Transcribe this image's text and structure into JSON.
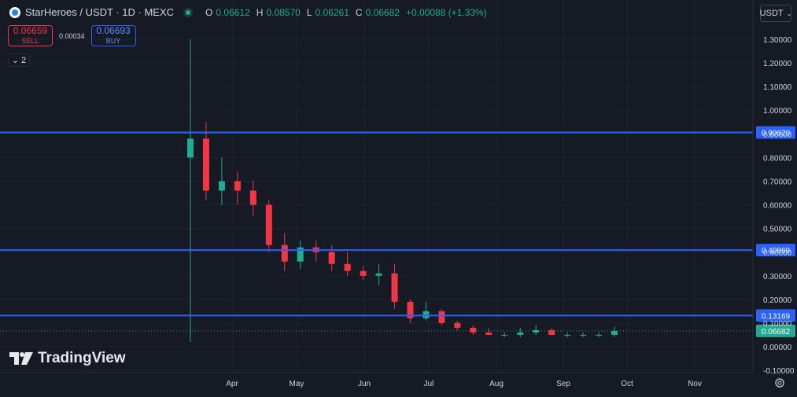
{
  "header": {
    "symbol": "StarHeroes / USDT · 1D · MEXC",
    "ohlc": [
      {
        "k": "O",
        "v": "0.06612"
      },
      {
        "k": "H",
        "v": "0.08570"
      },
      {
        "k": "L",
        "v": "0.06261"
      },
      {
        "k": "C",
        "v": "0.06682"
      },
      {
        "k": "",
        "v": "+0.00088 (+1.33%)"
      }
    ]
  },
  "trade": {
    "sell_price": "0.06659",
    "sell_label": "SELL",
    "spread": "0.00034",
    "buy_price": "0.06693",
    "buy_label": "BUY"
  },
  "indicators_toggle": {
    "count": "2"
  },
  "currency": "USDT",
  "branding": "TradingView",
  "colors": {
    "background": "#161a25",
    "up": "#22ab94",
    "down": "#f23645",
    "level_line": "#2962ff",
    "grid": "#1f2330",
    "text": "#d1d4dc"
  },
  "chart_data": {
    "type": "candlestick",
    "x_labels": [
      "Apr",
      "May",
      "Jun",
      "Jul",
      "Aug",
      "Sep",
      "Oct",
      "Nov"
    ],
    "y_ticks": [
      "1.30000",
      "1.20000",
      "1.10000",
      "1.00000",
      "0.90000",
      "0.80000",
      "0.70000",
      "0.60000",
      "0.50000",
      "0.40000",
      "0.30000",
      "0.20000",
      "0.10000",
      "0.00000",
      "-0.10000"
    ],
    "ylim": [
      -0.1,
      1.3
    ],
    "horizontal_levels": [
      {
        "value": 0.9062,
        "label": "0.90620"
      },
      {
        "value": 0.40869,
        "label": "0.40869"
      },
      {
        "value": 0.13169,
        "label": "0.13169"
      }
    ],
    "last_price": {
      "value": 0.06682,
      "label": "0.06682"
    },
    "candles_weekly_approx": [
      {
        "o": 0.8,
        "h": 1.3,
        "l": 0.02,
        "c": 0.88
      },
      {
        "o": 0.88,
        "h": 0.95,
        "l": 0.62,
        "c": 0.66
      },
      {
        "o": 0.66,
        "h": 0.8,
        "l": 0.6,
        "c": 0.7
      },
      {
        "o": 0.7,
        "h": 0.74,
        "l": 0.6,
        "c": 0.66
      },
      {
        "o": 0.66,
        "h": 0.7,
        "l": 0.55,
        "c": 0.6
      },
      {
        "o": 0.6,
        "h": 0.62,
        "l": 0.4,
        "c": 0.43
      },
      {
        "o": 0.43,
        "h": 0.48,
        "l": 0.32,
        "c": 0.36
      },
      {
        "o": 0.36,
        "h": 0.45,
        "l": 0.33,
        "c": 0.42
      },
      {
        "o": 0.42,
        "h": 0.45,
        "l": 0.36,
        "c": 0.4
      },
      {
        "o": 0.4,
        "h": 0.43,
        "l": 0.32,
        "c": 0.35
      },
      {
        "o": 0.35,
        "h": 0.4,
        "l": 0.3,
        "c": 0.32
      },
      {
        "o": 0.32,
        "h": 0.34,
        "l": 0.28,
        "c": 0.3
      },
      {
        "o": 0.3,
        "h": 0.35,
        "l": 0.26,
        "c": 0.31
      },
      {
        "o": 0.31,
        "h": 0.35,
        "l": 0.16,
        "c": 0.19
      },
      {
        "o": 0.19,
        "h": 0.2,
        "l": 0.1,
        "c": 0.12
      },
      {
        "o": 0.12,
        "h": 0.19,
        "l": 0.11,
        "c": 0.15
      },
      {
        "o": 0.15,
        "h": 0.16,
        "l": 0.09,
        "c": 0.1
      },
      {
        "o": 0.1,
        "h": 0.11,
        "l": 0.07,
        "c": 0.08
      },
      {
        "o": 0.08,
        "h": 0.09,
        "l": 0.05,
        "c": 0.06
      },
      {
        "o": 0.06,
        "h": 0.08,
        "l": 0.05,
        "c": 0.05
      },
      {
        "o": 0.05,
        "h": 0.06,
        "l": 0.04,
        "c": 0.05
      },
      {
        "o": 0.05,
        "h": 0.08,
        "l": 0.04,
        "c": 0.06
      },
      {
        "o": 0.06,
        "h": 0.09,
        "l": 0.05,
        "c": 0.07
      },
      {
        "o": 0.07,
        "h": 0.08,
        "l": 0.05,
        "c": 0.05
      },
      {
        "o": 0.05,
        "h": 0.06,
        "l": 0.04,
        "c": 0.05
      },
      {
        "o": 0.05,
        "h": 0.06,
        "l": 0.04,
        "c": 0.05
      },
      {
        "o": 0.05,
        "h": 0.06,
        "l": 0.04,
        "c": 0.05
      },
      {
        "o": 0.05,
        "h": 0.0857,
        "l": 0.04,
        "c": 0.06682
      }
    ]
  }
}
